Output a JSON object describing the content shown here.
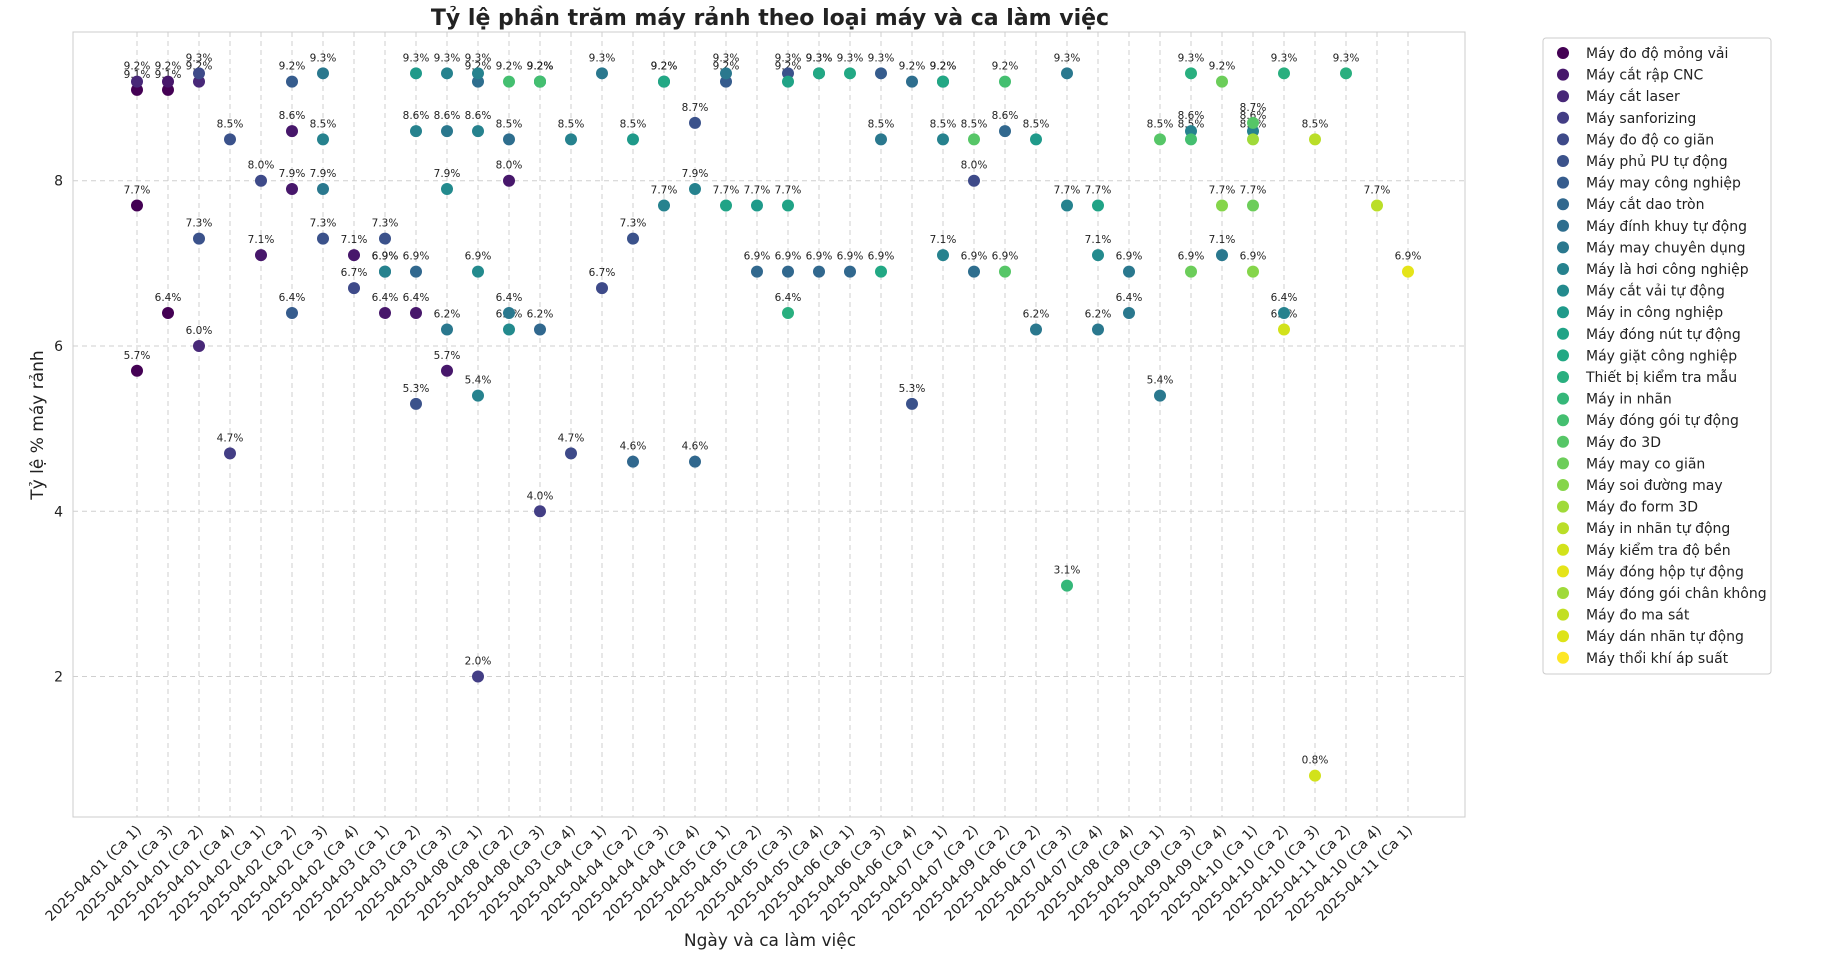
{
  "chart_data": {
    "type": "scatter",
    "title": "Tỷ lệ phần trăm máy rảnh theo loại máy và ca làm việc",
    "xlabel": "Ngày và ca làm việc",
    "ylabel": "Tỷ lệ % máy rảnh",
    "ylim": [
      0.3,
      9.8
    ],
    "yticks": [
      2,
      4,
      6,
      8
    ],
    "grid": true,
    "legend_position": "right",
    "categories": [
      "2025-04-01 (Ca 1)",
      "2025-04-01 (Ca 3)",
      "2025-04-01 (Ca 2)",
      "2025-04-01 (Ca 4)",
      "2025-04-02 (Ca 1)",
      "2025-04-02 (Ca 2)",
      "2025-04-02 (Ca 3)",
      "2025-04-02 (Ca 4)",
      "2025-04-03 (Ca 1)",
      "2025-04-03 (Ca 2)",
      "2025-04-03 (Ca 3)",
      "2025-04-08 (Ca 1)",
      "2025-04-08 (Ca 2)",
      "2025-04-08 (Ca 3)",
      "2025-04-03 (Ca 4)",
      "2025-04-04 (Ca 1)",
      "2025-04-04 (Ca 2)",
      "2025-04-04 (Ca 3)",
      "2025-04-04 (Ca 4)",
      "2025-04-05 (Ca 1)",
      "2025-04-05 (Ca 2)",
      "2025-04-05 (Ca 3)",
      "2025-04-05 (Ca 4)",
      "2025-04-06 (Ca 1)",
      "2025-04-06 (Ca 3)",
      "2025-04-06 (Ca 4)",
      "2025-04-07 (Ca 1)",
      "2025-04-07 (Ca 2)",
      "2025-04-09 (Ca 2)",
      "2025-04-06 (Ca 2)",
      "2025-04-07 (Ca 3)",
      "2025-04-07 (Ca 4)",
      "2025-04-08 (Ca 4)",
      "2025-04-09 (Ca 1)",
      "2025-04-09 (Ca 3)",
      "2025-04-09 (Ca 4)",
      "2025-04-10 (Ca 1)",
      "2025-04-10 (Ca 2)",
      "2025-04-10 (Ca 3)",
      "2025-04-11 (Ca 2)",
      "2025-04-10 (Ca 4)",
      "2025-04-11 (Ca 1)"
    ],
    "series": [
      {
        "name": "Máy đo độ mỏng vải",
        "color": "#440154",
        "points": [
          [
            0,
            9.1
          ],
          [
            0,
            7.7
          ],
          [
            0,
            5.7
          ],
          [
            1,
            9.1
          ],
          [
            1,
            6.4
          ]
        ]
      },
      {
        "name": "Máy cắt rập CNC",
        "color": "#47176b",
        "points": [
          [
            1,
            9.2
          ],
          [
            4,
            7.1
          ],
          [
            5,
            8.6
          ],
          [
            5,
            7.9
          ],
          [
            7,
            7.1
          ],
          [
            8,
            6.4
          ],
          [
            9,
            6.4
          ],
          [
            10,
            5.7
          ],
          [
            12,
            8.0
          ]
        ]
      },
      {
        "name": "Máy cắt laser",
        "color": "#482878",
        "points": [
          [
            0,
            9.2
          ],
          [
            2,
            9.2
          ],
          [
            2,
            6.0
          ]
        ]
      },
      {
        "name": "Máy sanforizing",
        "color": "#433e85",
        "points": [
          [
            3,
            4.7
          ],
          [
            11,
            2.0
          ],
          [
            13,
            4.0
          ]
        ]
      },
      {
        "name": "Máy đo độ co giãn",
        "color": "#3e4a89",
        "points": [
          [
            2,
            9.3
          ],
          [
            4,
            8.0
          ],
          [
            7,
            6.7
          ],
          [
            14,
            4.7
          ],
          [
            15,
            6.7
          ],
          [
            27,
            8.0
          ]
        ]
      },
      {
        "name": "Máy phủ PU tự động",
        "color": "#3b528b",
        "points": [
          [
            2,
            7.3
          ],
          [
            3,
            8.5
          ],
          [
            6,
            7.3
          ],
          [
            8,
            7.3
          ],
          [
            9,
            5.3
          ],
          [
            16,
            7.3
          ],
          [
            18,
            8.7
          ],
          [
            21,
            9.3
          ],
          [
            25,
            5.3
          ],
          [
            26,
            9.2
          ]
        ]
      },
      {
        "name": "Máy may công nghiệp",
        "color": "#365c8d",
        "points": [
          [
            5,
            9.2
          ],
          [
            5,
            6.4
          ],
          [
            17,
            9.2
          ],
          [
            19,
            9.2
          ],
          [
            22,
            9.3
          ],
          [
            24,
            9.3
          ]
        ]
      },
      {
        "name": "Máy cắt dao tròn",
        "color": "#31688e",
        "points": [
          [
            8,
            6.9
          ],
          [
            9,
            6.9
          ],
          [
            13,
            6.2
          ],
          [
            16,
            4.6
          ],
          [
            18,
            4.6
          ],
          [
            20,
            6.9
          ],
          [
            21,
            6.9
          ],
          [
            22,
            6.9
          ],
          [
            23,
            6.9
          ],
          [
            28,
            8.6
          ]
        ]
      },
      {
        "name": "Máy đính khuy tự động",
        "color": "#2e6e8e",
        "points": [
          [
            11,
            9.2
          ],
          [
            12,
            8.5
          ],
          [
            25,
            9.2
          ],
          [
            27,
            6.9
          ]
        ]
      },
      {
        "name": "Máy may chuyên dụng",
        "color": "#2a788e",
        "points": [
          [
            6,
            9.3
          ],
          [
            6,
            7.9
          ],
          [
            10,
            6.2
          ],
          [
            10,
            8.6
          ],
          [
            12,
            6.4
          ],
          [
            13,
            9.2
          ],
          [
            15,
            9.3
          ],
          [
            19,
            9.3
          ],
          [
            24,
            8.5
          ],
          [
            29,
            6.2
          ],
          [
            30,
            9.3
          ],
          [
            31,
            6.2
          ],
          [
            32,
            6.9
          ],
          [
            32,
            6.4
          ],
          [
            33,
            5.4
          ],
          [
            35,
            7.1
          ]
        ]
      },
      {
        "name": "Máy là hơi công nghiệp",
        "color": "#26828e",
        "points": [
          [
            6,
            8.5
          ],
          [
            8,
            6.9
          ],
          [
            9,
            8.6
          ],
          [
            10,
            9.3
          ],
          [
            11,
            9.3
          ],
          [
            11,
            8.6
          ],
          [
            11,
            5.4
          ],
          [
            14,
            8.5
          ],
          [
            17,
            7.7
          ],
          [
            18,
            7.9
          ],
          [
            26,
            8.5
          ],
          [
            26,
            7.1
          ],
          [
            30,
            7.7
          ],
          [
            34,
            8.6
          ],
          [
            36,
            8.6
          ],
          [
            37,
            6.4
          ]
        ]
      },
      {
        "name": "Máy cắt vải tự động",
        "color": "#238a8d",
        "points": [
          [
            10,
            7.9
          ],
          [
            11,
            6.9
          ],
          [
            12,
            6.2
          ],
          [
            31,
            7.1
          ]
        ]
      },
      {
        "name": "Máy in công nghiệp",
        "color": "#1f9a8a",
        "points": [
          [
            9,
            9.3
          ],
          [
            13,
            9.2
          ],
          [
            16,
            8.5
          ],
          [
            20,
            7.7
          ],
          [
            29,
            8.5
          ]
        ]
      },
      {
        "name": "Máy đóng nút tự động",
        "color": "#20a386",
        "points": [
          [
            19,
            7.7
          ],
          [
            21,
            9.2
          ],
          [
            21,
            7.7
          ],
          [
            31,
            7.7
          ]
        ]
      },
      {
        "name": "Máy giặt công nghiệp",
        "color": "#22a884",
        "points": [
          [
            17,
            9.2
          ],
          [
            22,
            9.3
          ],
          [
            23,
            9.3
          ],
          [
            24,
            6.9
          ],
          [
            26,
            9.2
          ]
        ]
      },
      {
        "name": "Thiết bị kiểm tra mẫu",
        "color": "#29af7f",
        "points": [
          [
            21,
            6.4
          ],
          [
            34,
            9.3
          ],
          [
            37,
            9.3
          ],
          [
            39,
            9.3
          ]
        ]
      },
      {
        "name": "Máy in nhãn",
        "color": "#35b779",
        "points": [
          [
            30,
            3.1
          ]
        ]
      },
      {
        "name": "Máy đóng gói tự động",
        "color": "#44bf70",
        "points": [
          [
            12,
            9.2
          ],
          [
            13,
            9.2
          ],
          [
            28,
            9.2
          ],
          [
            34,
            8.5
          ]
        ]
      },
      {
        "name": "Máy đo 3D",
        "color": "#56c667",
        "points": [
          [
            27,
            8.5
          ],
          [
            28,
            6.9
          ],
          [
            33,
            8.5
          ],
          [
            36,
            8.7
          ]
        ]
      },
      {
        "name": "Máy may co giãn",
        "color": "#6ccd5a",
        "points": [
          [
            34,
            6.9
          ],
          [
            35,
            9.2
          ],
          [
            36,
            7.7
          ]
        ]
      },
      {
        "name": "Máy soi đường may",
        "color": "#85d54a",
        "points": [
          [
            35,
            7.7
          ],
          [
            36,
            6.9
          ]
        ]
      },
      {
        "name": "Máy đo form 3D",
        "color": "#a0da39",
        "points": [
          [
            36,
            8.5
          ]
        ]
      },
      {
        "name": "Máy in nhãn tự động",
        "color": "#bade28",
        "points": [
          [
            38,
            8.5
          ],
          [
            40,
            7.7
          ]
        ]
      },
      {
        "name": "Máy kiểm tra độ bền",
        "color": "#d2e21b",
        "points": [
          [
            37,
            6.2
          ],
          [
            38,
            0.8
          ]
        ]
      },
      {
        "name": "Máy đóng hộp tự động",
        "color": "#e5e419",
        "points": [
          [
            41,
            6.9
          ]
        ]
      },
      {
        "name": "Máy đóng gói chân không",
        "color": "#9fda3a",
        "points": []
      },
      {
        "name": "Máy đo ma sát",
        "color": "#c2df23",
        "points": []
      },
      {
        "name": "Máy dán nhãn tự động",
        "color": "#dde318",
        "points": []
      },
      {
        "name": "Máy thổi khí áp suất",
        "color": "#fde725",
        "points": []
      }
    ]
  }
}
